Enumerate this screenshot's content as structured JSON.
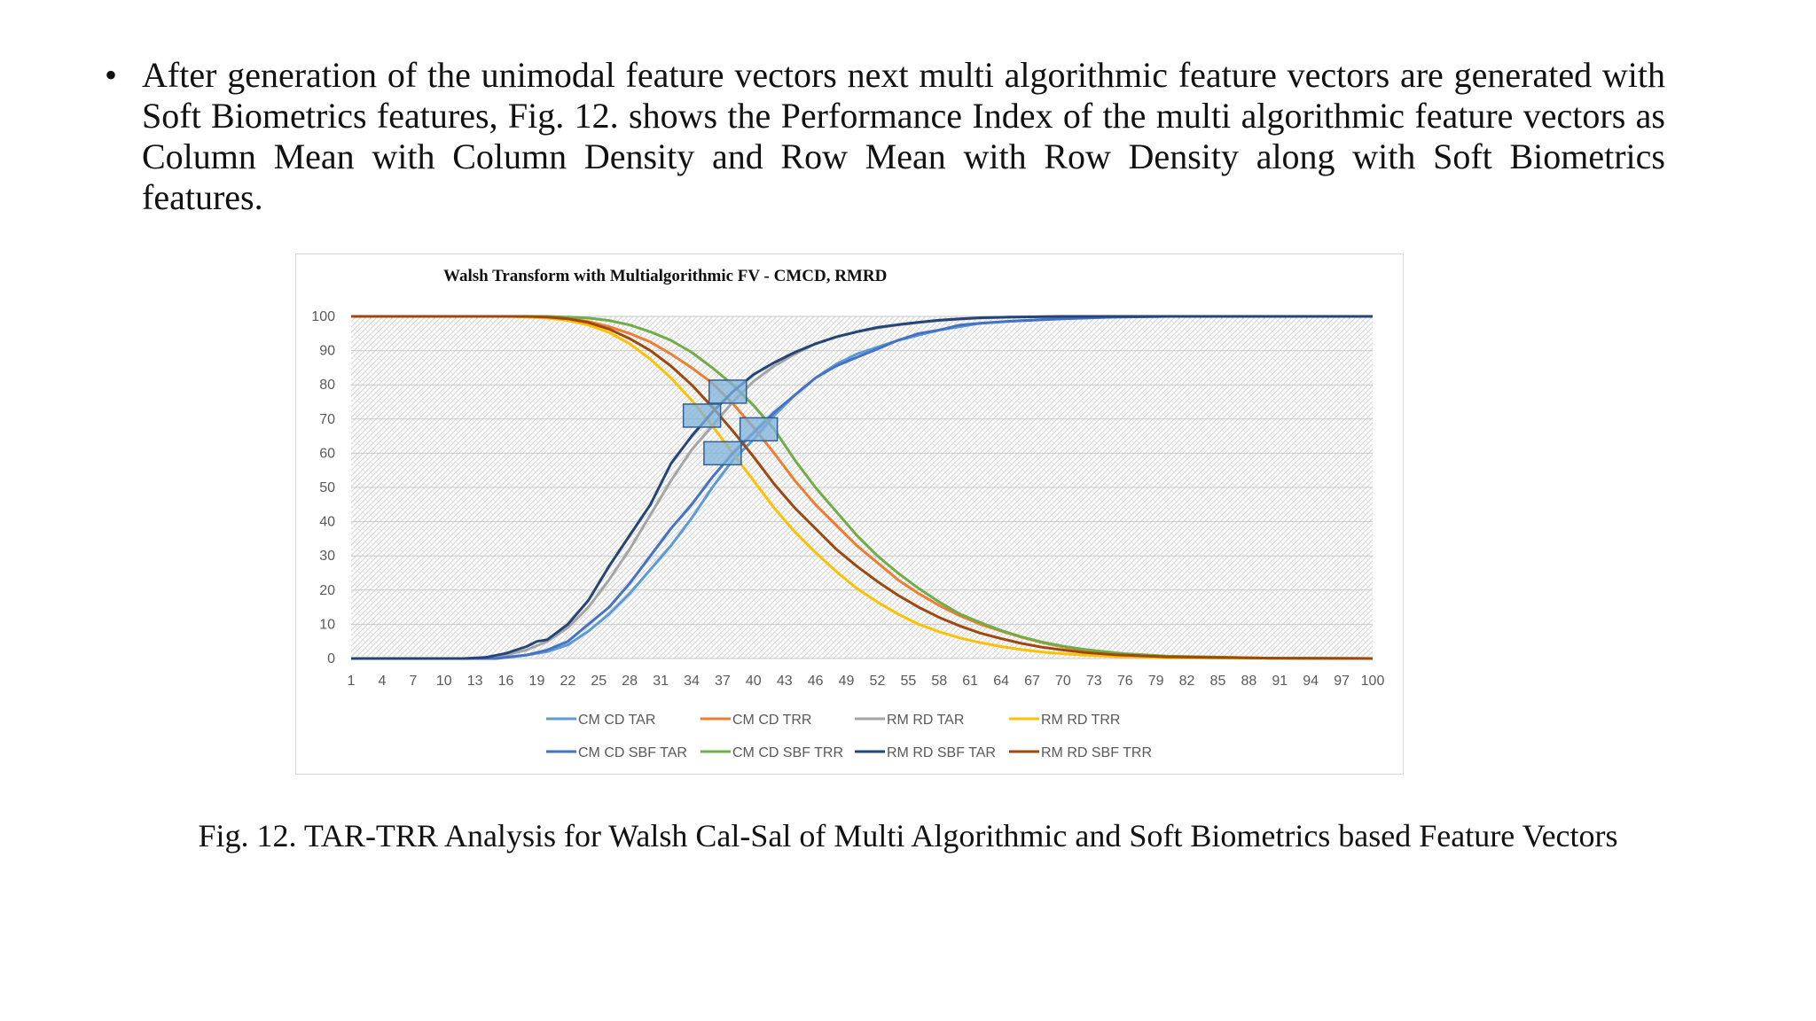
{
  "paragraph": {
    "bullet": "•",
    "text": "After generation of the unimodal feature vectors next multi algorithmic feature vectors are generated with Soft Biometrics features, Fig. 12. shows the Performance Index of the multi algorithmic feature vectors as Column Mean with Column Density and Row Mean with Row Density along with Soft Biometrics features."
  },
  "caption": "Fig. 12. TAR-TRR Analysis for Walsh Cal-Sal of Multi Algorithmic and Soft Biometrics based Feature Vectors",
  "chart_data": {
    "type": "line",
    "title": "Walsh Transform with Multialgorithmic FV - CMCD, RMRD",
    "xlabel": "",
    "ylabel": "",
    "xlim": [
      1,
      100
    ],
    "ylim": [
      0,
      100
    ],
    "y_ticks": [
      0,
      10,
      20,
      30,
      40,
      50,
      60,
      70,
      80,
      90,
      100
    ],
    "x_ticks": [
      1,
      4,
      7,
      10,
      13,
      16,
      19,
      22,
      25,
      28,
      31,
      34,
      37,
      40,
      43,
      46,
      49,
      52,
      55,
      58,
      61,
      64,
      67,
      70,
      73,
      76,
      79,
      82,
      85,
      88,
      91,
      94,
      97,
      100
    ],
    "grid": true,
    "legend": "bottom",
    "series": [
      {
        "name": "CM CD TAR",
        "color": "#5b9bd5",
        "x": [
          1,
          10,
          15,
          18,
          20,
          22,
          24,
          26,
          28,
          30,
          32,
          34,
          36,
          38,
          40,
          42,
          44,
          46,
          48,
          50,
          52,
          54,
          56,
          58,
          60,
          62,
          65,
          70,
          75,
          80,
          100
        ],
        "values": [
          0,
          0,
          0,
          1,
          2,
          4,
          8,
          13,
          19,
          26,
          33,
          41,
          50,
          58,
          64,
          71,
          77,
          82,
          86,
          89,
          91,
          93,
          94.5,
          96,
          97,
          98,
          98.6,
          99.4,
          99.8,
          100,
          100
        ]
      },
      {
        "name": "CM CD TRR",
        "color": "#ed7d31",
        "x": [
          1,
          18,
          20,
          22,
          24,
          26,
          28,
          30,
          32,
          34,
          36,
          38,
          40,
          42,
          44,
          46,
          48,
          50,
          52,
          54,
          56,
          58,
          60,
          62,
          64,
          66,
          68,
          70,
          72,
          75,
          80,
          90,
          100
        ],
        "values": [
          100,
          100,
          99.8,
          99.4,
          98.5,
          97,
          95,
          92.5,
          89,
          85,
          80.5,
          74.5,
          67.5,
          60,
          52,
          45,
          39,
          33,
          28,
          23,
          19,
          15.5,
          12.5,
          10,
          8,
          6.2,
          4.6,
          3.4,
          2.4,
          1.5,
          0.6,
          0.1,
          0
        ]
      },
      {
        "name": "RM RD TAR",
        "color": "#a5a5a5",
        "x": [
          1,
          12,
          14,
          16,
          18,
          20,
          22,
          24,
          26,
          28,
          30,
          32,
          34,
          36,
          38,
          40,
          42,
          44,
          46,
          48,
          50,
          52,
          54,
          56,
          58,
          60,
          62,
          65,
          70,
          75,
          100
        ],
        "values": [
          0,
          0,
          0.3,
          1,
          2.5,
          5,
          9,
          15,
          23,
          32,
          42,
          52,
          61,
          68,
          75,
          81,
          85.5,
          89,
          92,
          94,
          95.5,
          96.6,
          97.5,
          98.2,
          98.8,
          99.2,
          99.5,
          99.8,
          100,
          100,
          100
        ]
      },
      {
        "name": "RM RD TRR",
        "color": "#ffc000",
        "x": [
          1,
          16,
          18,
          20,
          22,
          24,
          26,
          28,
          30,
          32,
          34,
          36,
          38,
          40,
          42,
          44,
          46,
          48,
          50,
          52,
          54,
          56,
          58,
          60,
          62,
          64,
          66,
          68,
          70,
          72,
          75,
          80,
          90,
          100
        ],
        "values": [
          100,
          100,
          99.8,
          99.5,
          98.8,
          97.5,
          95.3,
          92,
          87.5,
          82,
          75.5,
          68,
          60,
          52,
          44,
          37,
          31,
          25.5,
          20.5,
          16.5,
          13,
          10,
          7.8,
          6,
          4.6,
          3.5,
          2.6,
          1.9,
          1.4,
          1,
          0.6,
          0.2,
          0.05,
          0
        ]
      },
      {
        "name": "CM CD SBF TAR",
        "color": "#4472c4",
        "x": [
          1,
          10,
          15,
          18,
          20,
          22,
          24,
          26,
          28,
          30,
          32,
          34,
          36,
          38,
          40,
          42,
          44,
          46,
          48,
          50,
          52,
          54,
          56,
          58,
          60,
          62,
          65,
          70,
          75,
          80,
          100
        ],
        "values": [
          0,
          0,
          0,
          1,
          2.5,
          5,
          10,
          15,
          22,
          30,
          38,
          45,
          53,
          60,
          66,
          72,
          77,
          82,
          85.5,
          88,
          90.5,
          93,
          95,
          96,
          97.5,
          98,
          98.6,
          99.3,
          99.8,
          100,
          100
        ]
      },
      {
        "name": "CM CD SBF TRR",
        "color": "#70ad47",
        "x": [
          1,
          20,
          22,
          24,
          26,
          28,
          30,
          32,
          34,
          36,
          38,
          40,
          42,
          44,
          46,
          48,
          50,
          52,
          54,
          56,
          58,
          60,
          62,
          64,
          66,
          68,
          70,
          72,
          74,
          76,
          80,
          90,
          100
        ],
        "values": [
          100,
          100,
          99.8,
          99.5,
          98.8,
          97.5,
          95.5,
          93,
          89.5,
          85,
          80,
          74,
          67,
          58,
          50,
          43,
          36,
          30,
          25,
          20.5,
          16.5,
          13,
          10.5,
          8.2,
          6.3,
          4.8,
          3.6,
          2.7,
          2,
          1.4,
          0.7,
          0.1,
          0
        ]
      },
      {
        "name": "RM RD SBF TAR",
        "color": "#264478",
        "x": [
          1,
          12,
          14,
          16,
          18,
          19,
          20,
          22,
          24,
          26,
          28,
          30,
          32,
          34,
          36,
          38,
          40,
          42,
          44,
          46,
          48,
          50,
          52,
          54,
          56,
          58,
          60,
          62,
          65,
          70,
          75,
          100
        ],
        "values": [
          0,
          0,
          0.3,
          1.5,
          3.5,
          5,
          5.5,
          10,
          17,
          27,
          36,
          45,
          57,
          65,
          72,
          78,
          83,
          86.5,
          89.5,
          92,
          94,
          95.5,
          96.8,
          97.6,
          98.3,
          98.9,
          99.3,
          99.6,
          99.8,
          100,
          100,
          100
        ]
      },
      {
        "name": "RM RD SBF TRR",
        "color": "#9e480e",
        "x": [
          1,
          18,
          20,
          22,
          24,
          26,
          28,
          30,
          32,
          34,
          36,
          38,
          40,
          42,
          44,
          46,
          48,
          50,
          52,
          54,
          56,
          58,
          60,
          62,
          64,
          66,
          68,
          70,
          72,
          75,
          80,
          90,
          100
        ],
        "values": [
          100,
          100,
          99.8,
          99.3,
          98.2,
          96.3,
          93.5,
          90,
          85.5,
          80,
          73.5,
          66.5,
          59,
          51,
          44,
          38,
          32,
          27,
          22.5,
          18.5,
          15,
          12,
          9.5,
          7.4,
          5.8,
          4.4,
          3.3,
          2.5,
          1.8,
          1.1,
          0.5,
          0.1,
          0
        ]
      }
    ],
    "markers": [
      {
        "x": 35,
        "y": 71
      },
      {
        "x": 37.5,
        "y": 78
      },
      {
        "x": 37,
        "y": 60
      },
      {
        "x": 40.5,
        "y": 67
      }
    ]
  }
}
